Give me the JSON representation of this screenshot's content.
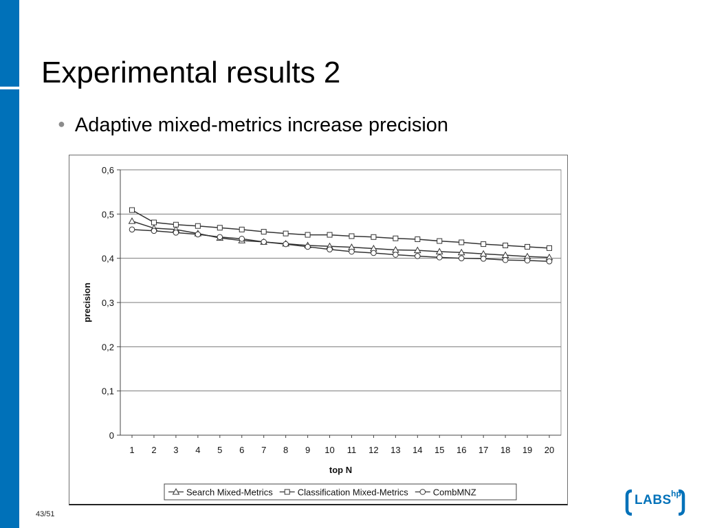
{
  "slide": {
    "title": "Experimental results 2",
    "bullet": "Adaptive mixed-metrics increase precision",
    "page_number": "43/51",
    "logo_text": "LABS",
    "logo_sup": "hp",
    "accent_color": "#0071b9"
  },
  "chart_data": {
    "type": "line",
    "xlabel": "top N",
    "ylabel": "precision",
    "x": [
      1,
      2,
      3,
      4,
      5,
      6,
      7,
      8,
      9,
      10,
      11,
      12,
      13,
      14,
      15,
      16,
      17,
      18,
      19,
      20
    ],
    "ylim": [
      0,
      0.6
    ],
    "yticks": [
      "0",
      "0,1",
      "0,2",
      "0,3",
      "0,4",
      "0,5",
      "0,6"
    ],
    "grid": true,
    "legend": "bottom",
    "series": [
      {
        "name": "Search Mixed-Metrics",
        "marker": "triangle",
        "values": [
          0.484,
          0.468,
          0.465,
          0.456,
          0.446,
          0.44,
          0.437,
          0.433,
          0.429,
          0.427,
          0.425,
          0.422,
          0.419,
          0.418,
          0.415,
          0.413,
          0.41,
          0.407,
          0.404,
          0.402
        ]
      },
      {
        "name": "Classification Mixed-Metrics",
        "marker": "square",
        "values": [
          0.509,
          0.481,
          0.476,
          0.473,
          0.469,
          0.465,
          0.46,
          0.456,
          0.453,
          0.453,
          0.45,
          0.448,
          0.445,
          0.443,
          0.439,
          0.436,
          0.432,
          0.429,
          0.426,
          0.423
        ]
      },
      {
        "name": "CombMNZ",
        "marker": "circle",
        "values": [
          0.465,
          0.462,
          0.458,
          0.454,
          0.448,
          0.444,
          0.437,
          0.432,
          0.426,
          0.42,
          0.415,
          0.412,
          0.408,
          0.405,
          0.402,
          0.4,
          0.399,
          0.396,
          0.395,
          0.393
        ]
      }
    ]
  }
}
